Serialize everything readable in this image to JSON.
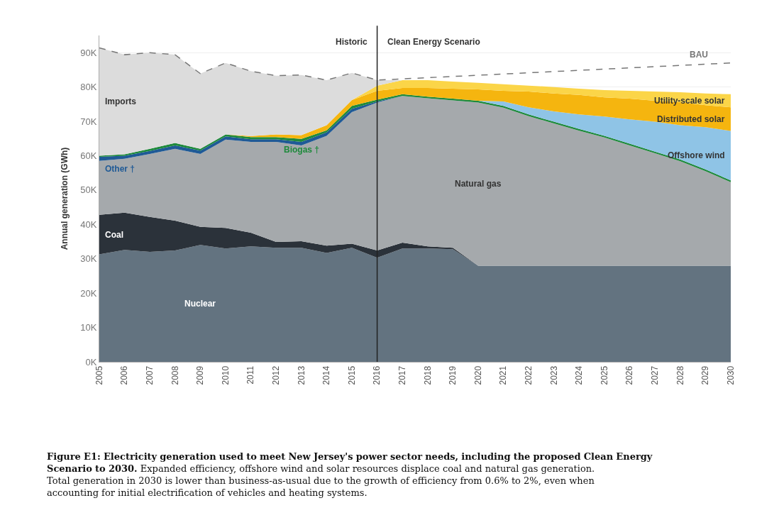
{
  "chart_data": {
    "type": "area",
    "stacked": true,
    "title": "Figure E1: Electricity generation used to meet New Jersey's power sector needs, including the proposed Clean Energy Scenario to 2030.",
    "subtitle": "Expanded efficiency, offshore wind and solar resources displace coal and natural gas generation. Total generation in 2030 is lower than business-as-usual due to the growth of efficiency from 0.6% to 2%, even when accounting for initial electrification of vehicles and heating systems.",
    "ylabel": "Annual generation (GWh)",
    "x": [
      2005,
      2006,
      2007,
      2008,
      2009,
      2010,
      2011,
      2012,
      2013,
      2014,
      2015,
      2016,
      2017,
      2018,
      2019,
      2020,
      2021,
      2022,
      2023,
      2024,
      2025,
      2026,
      2027,
      2028,
      2029,
      2030
    ],
    "series": [
      {
        "name": "Nuclear",
        "color": "#637380",
        "values": [
          31300,
          32600,
          32000,
          32400,
          34000,
          33000,
          33600,
          33200,
          33200,
          31700,
          33200,
          30300,
          33000,
          33000,
          32800,
          28000,
          28000,
          28000,
          28000,
          28000,
          28000,
          28000,
          28000,
          28000,
          28000,
          28000
        ]
      },
      {
        "name": "Coal",
        "color": "#2b323a",
        "values": [
          11500,
          10800,
          10200,
          8700,
          5300,
          6000,
          4000,
          1700,
          1900,
          2100,
          1200,
          2100,
          1700,
          600,
          400,
          0,
          0,
          0,
          0,
          0,
          0,
          0,
          0,
          0,
          0,
          0
        ]
      },
      {
        "name": "Natural gas",
        "color": "#a5a9ac",
        "values": [
          15700,
          15700,
          18300,
          20900,
          21200,
          25700,
          26400,
          29100,
          27900,
          32000,
          38300,
          43100,
          42700,
          43100,
          42900,
          47500,
          46000,
          43500,
          41400,
          39300,
          37300,
          35000,
          32700,
          30400,
          27500,
          24300
        ]
      },
      {
        "name": "Other †",
        "color": "#1f5a96",
        "values": [
          1200,
          900,
          900,
          1000,
          1000,
          900,
          800,
          800,
          1000,
          1000,
          1000,
          300,
          0,
          0,
          0,
          0,
          0,
          0,
          0,
          0,
          0,
          0,
          0,
          0,
          0,
          0
        ]
      },
      {
        "name": "Biogas †",
        "color": "#1f8a3c",
        "values": [
          300,
          400,
          600,
          700,
          500,
          600,
          600,
          600,
          900,
          600,
          800,
          500,
          500,
          500,
          500,
          500,
          500,
          500,
          500,
          500,
          500,
          500,
          500,
          500,
          500,
          500
        ]
      },
      {
        "name": "Offshore wind",
        "color": "#8fc4e6",
        "values": [
          0,
          0,
          0,
          0,
          0,
          0,
          0,
          0,
          0,
          0,
          0,
          0,
          0,
          0,
          0,
          0,
          1300,
          2100,
          3000,
          4200,
          5600,
          7100,
          8700,
          10000,
          12300,
          14400
        ]
      },
      {
        "name": "Distributed solar",
        "color": "#f5b50f",
        "values": [
          0,
          0,
          0,
          0,
          0,
          0,
          300,
          800,
          1100,
          1500,
          1700,
          2600,
          1800,
          2500,
          2900,
          3300,
          3100,
          4600,
          5200,
          5700,
          5600,
          6000,
          6100,
          6700,
          6400,
          6900
        ]
      },
      {
        "name": "Utility-scale solar",
        "color": "#fbd548",
        "values": [
          0,
          0,
          0,
          0,
          0,
          0,
          0,
          0,
          0,
          0,
          0,
          1500,
          2300,
          2300,
          2100,
          1900,
          1900,
          1700,
          1900,
          1800,
          2100,
          2300,
          2700,
          2900,
          3400,
          3800
        ]
      },
      {
        "name": "Imports",
        "color": "#dcdcdc",
        "values": [
          31400,
          29000,
          28000,
          25700,
          21900,
          20800,
          18900,
          17100,
          17500,
          13100,
          7900,
          1600,
          0,
          0,
          0,
          0,
          0,
          0,
          0,
          0,
          0,
          0,
          0,
          0,
          0,
          0
        ]
      },
      {
        "name": "BAU",
        "type": "line",
        "color": "#777777",
        "line_style": "dashed",
        "x": [
          2005,
          2006,
          2007,
          2008,
          2009,
          2010,
          2011,
          2012,
          2013,
          2014,
          2015,
          2016,
          2030
        ],
        "values": [
          91400,
          89400,
          90000,
          89400,
          83900,
          87000,
          84600,
          83300,
          83500,
          82000,
          84100,
          82000,
          87000
        ]
      }
    ],
    "xlim": [
      2005,
      2030
    ],
    "xticks": [
      2005,
      2006,
      2007,
      2008,
      2009,
      2010,
      2011,
      2012,
      2013,
      2014,
      2015,
      2016,
      2017,
      2018,
      2019,
      2020,
      2021,
      2022,
      2023,
      2024,
      2025,
      2026,
      2027,
      2028,
      2029,
      2030
    ],
    "ylim": [
      0,
      95000
    ],
    "yticks": [
      {
        "value": 0,
        "label": "0K"
      },
      {
        "value": 10000,
        "label": "10K"
      },
      {
        "value": 20000,
        "label": "20K"
      },
      {
        "value": 30000,
        "label": "30K"
      },
      {
        "value": 40000,
        "label": "40K"
      },
      {
        "value": 50000,
        "label": "50K"
      },
      {
        "value": 60000,
        "label": "60K"
      },
      {
        "value": 70000,
        "label": "70K"
      },
      {
        "value": 80000,
        "label": "80K"
      },
      {
        "value": 90000,
        "label": "90K"
      }
    ],
    "grid": "y",
    "legend": false,
    "ref_lines": [
      {
        "axis": "x",
        "value": 2016,
        "color": "#222222"
      }
    ],
    "annotations": [
      "Historic",
      "Clean Energy Scenario"
    ]
  }
}
